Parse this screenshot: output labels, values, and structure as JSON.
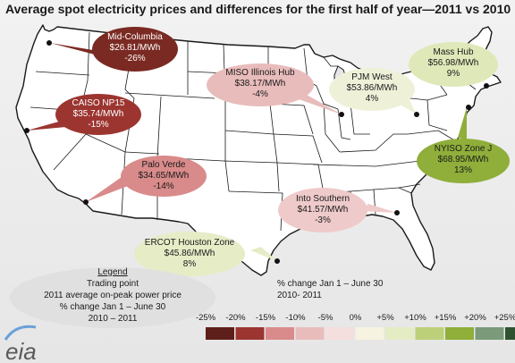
{
  "title": "Average spot electricity prices and differences  for the first half of year—2011  vs 2010",
  "trading_points": [
    {
      "name": "Mid-Columbia",
      "price": "$26.81/MWh",
      "change": "-26%",
      "change_value": -26,
      "color": "#7a2a22",
      "text_color": "light"
    },
    {
      "name": "CAISO NP15",
      "price": "$35.74/MWh",
      "change": "-15%",
      "change_value": -15,
      "color": "#9c3530",
      "text_color": "light"
    },
    {
      "name": "Palo Verde",
      "price": "$34.65/MWh",
      "change": "-14%",
      "change_value": -14,
      "color": "#d98a8a",
      "text_color": "dark"
    },
    {
      "name": "MISO Illinois Hub",
      "price": "$38.17/MWh",
      "change": "-4%",
      "change_value": -4,
      "color": "#e9bcbc",
      "text_color": "dark"
    },
    {
      "name": "PJM West",
      "price": "$53.86/MWh",
      "change": "4%",
      "change_value": 4,
      "color": "#eef1d8",
      "text_color": "dark"
    },
    {
      "name": "Mass Hub",
      "price": "$56.98/MWh",
      "change": "9%",
      "change_value": 9,
      "color": "#dfe8b8",
      "text_color": "dark"
    },
    {
      "name": "NYISO Zone J",
      "price": "$68.95/MWh",
      "change": "13%",
      "change_value": 13,
      "color": "#8fae3a",
      "text_color": "dark"
    },
    {
      "name": "Into Southern",
      "price": "$41.57/MWh",
      "change": "-3%",
      "change_value": -3,
      "color": "#eecaca",
      "text_color": "dark"
    },
    {
      "name": "ERCOT Houston Zone",
      "price": "$45.86/MWh",
      "change": "8%",
      "change_value": 8,
      "color": "#e6ecc6",
      "text_color": "dark"
    }
  ],
  "legend": {
    "title": "Legend",
    "lines": [
      "Trading point",
      "2011 average on-peak power price",
      "% change Jan 1 – June 30",
      "2010 – 2011"
    ]
  },
  "footnote": [
    "% change Jan 1 – June 30",
    "2010- 2011"
  ],
  "scale": {
    "labels": [
      "-25%",
      "-20%",
      "-15%",
      "-10%",
      "-5%",
      "0%",
      "+5%",
      "+10%",
      "+15%",
      "+20%",
      "+25%"
    ],
    "colors": [
      "#5e1e1a",
      "#9c3530",
      "#d98a8a",
      "#e9bcbc",
      "#f5dede",
      "#f6f3e0",
      "#e4ecc4",
      "#bcd07a",
      "#8fae3a",
      "#7a9a7a",
      "#2f5230"
    ]
  },
  "logo": "eia"
}
